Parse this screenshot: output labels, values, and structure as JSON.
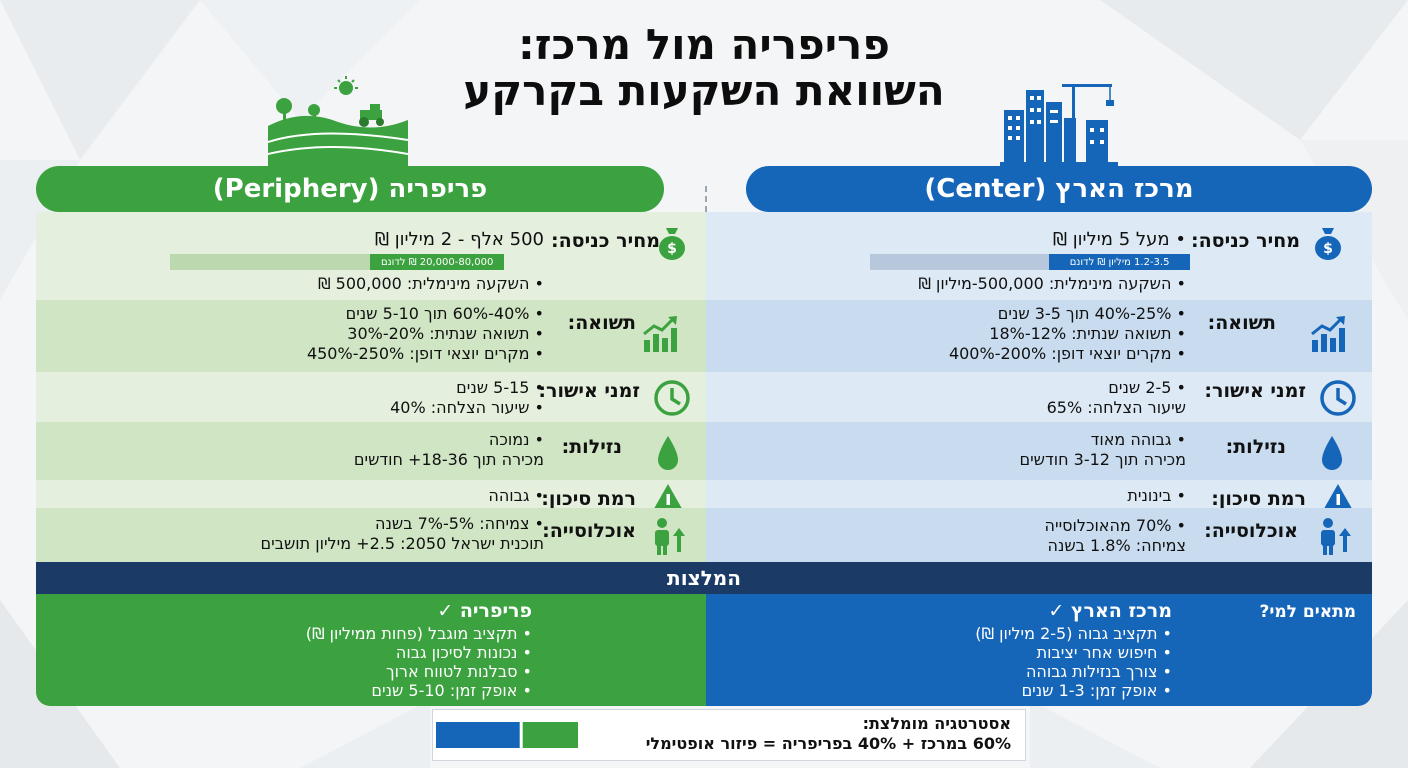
{
  "title": {
    "line1": "פריפריה מול מרכז:",
    "line2": "השוואת השקעות בקרקע"
  },
  "center": {
    "header": "מרכז הארץ (Center)",
    "color": "#1565b8",
    "rows": {
      "price": {
        "label": "מחיר כניסה:",
        "icon": "money-bag-icon",
        "main": "מעל 5 מיליון ₪",
        "bar_text": "1.2-3.5 מיליון ₪ לדונם",
        "bar_fill": 0.44,
        "min": "השקעה מינימלית: 500,000-מיליון ₪"
      },
      "return": {
        "label": "תשואה:",
        "icon": "chart-up-icon",
        "items": [
          "25%-40% תוך 3-5 שנים",
          "תשואה שנתית: 12%-18%",
          "מקרים יוצאי דופן: 200%-400%"
        ]
      },
      "approval": {
        "label": "זמני אישור:",
        "icon": "clock-icon",
        "items": [
          "2-5 שנים",
          "שיעור הצלחה: 65%"
        ]
      },
      "liquidity": {
        "label": "נזילות:",
        "icon": "drop-icon",
        "items": [
          "גבוהה מאוד",
          "מכירה תוך 3-12 חודשים"
        ]
      },
      "risk": {
        "label": "רמת סיכון:",
        "icon": "warning-icon",
        "items": [
          "בינונית"
        ]
      },
      "population": {
        "label": "אוכלוסייה:",
        "icon": "person-up-icon",
        "items": [
          "70% מהאוכלוסייה",
          "צמיחה: 1.8% בשנה"
        ]
      }
    },
    "rec_title": "מרכז הארץ ✓",
    "rec_items": [
      "תקציב גבוה (2-5 מיליון ₪)",
      "חיפוש אחר יציבות",
      "צורך בנזילות גבוהה",
      "אופק זמן: 1-3 שנים"
    ]
  },
  "periphery": {
    "header": "פריפריה (Periphery)",
    "color": "#3ba23f",
    "rows": {
      "price": {
        "label": "מחיר כניסה:",
        "icon": "money-bag-icon",
        "main": "500 אלף - 2 מיליון ₪",
        "bar_text": "20,000-80,000 ₪ לדונם",
        "bar_fill": 0.4,
        "min": "השקעה מינימלית: 500,000 ₪"
      },
      "return": {
        "label": "תשואה:",
        "icon": "chart-up-icon",
        "items": [
          "40%-60% תוך 5-10 שנים",
          "תשואה שנתית: 20%-30%",
          "מקרים יוצאי דופן: 250%-450%"
        ]
      },
      "approval": {
        "label": "זמני אישור:",
        "icon": "clock-icon",
        "items": [
          "5-15 שנים",
          "שיעור הצלחה: 40%"
        ]
      },
      "liquidity": {
        "label": "נזילות:",
        "icon": "drop-icon",
        "items": [
          "נמוכה",
          "מכירה תוך 18-36+ חודשים"
        ]
      },
      "risk": {
        "label": "רמת סיכון:",
        "icon": "warning-icon",
        "items": [
          "גבוהה"
        ]
      },
      "population": {
        "label": "אוכלוסייה:",
        "icon": "person-up-icon",
        "items": [
          "צמיחה: 5%-7% בשנה",
          "תוכנית ישראל 2050: 2.5+ מיליון תושבים"
        ]
      }
    },
    "rec_title": "פריפריה ✓",
    "rec_items": [
      "תקציב מוגבל (פחות ממיליון ₪)",
      "נכונות לסיכון גבוה",
      "סבלנות לטווח ארוך",
      "אופק זמן: 5-10 שנים"
    ]
  },
  "recommendations": {
    "header": "המלצות",
    "fit_for": "מתאים למי?"
  },
  "strategy": {
    "title": "אסטרטגיה מומלצת:",
    "text": "60% במרכז + 40% בפריפריה = פיזור אופטימלי",
    "center_share": 0.6,
    "periphery_share": 0.4
  }
}
